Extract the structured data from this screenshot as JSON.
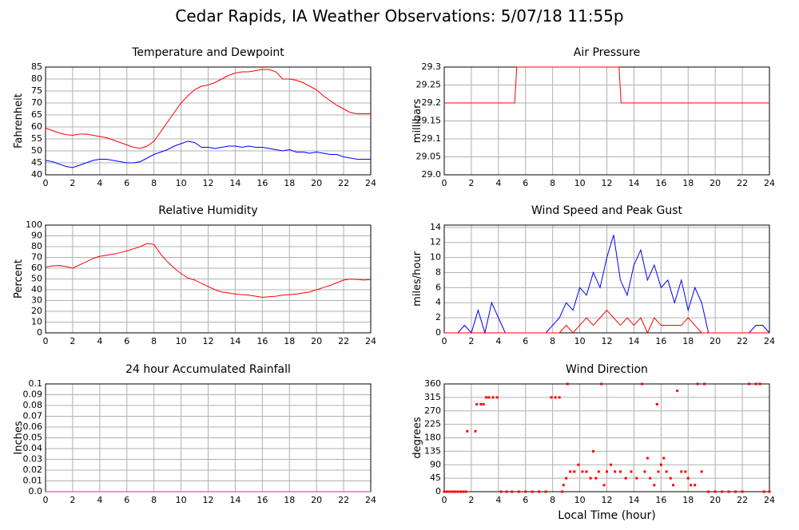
{
  "title": "Cedar Rapids, IA Weather Observations: 5/07/18 11:55p",
  "chart_data": [
    {
      "type": "line",
      "title": "Temperature and Dewpoint",
      "ylabel": "Fahrenheit",
      "x": [
        0,
        0.5,
        1,
        1.5,
        2,
        2.5,
        3,
        3.5,
        4,
        4.5,
        5,
        5.5,
        6,
        6.5,
        7,
        7.5,
        8,
        8.5,
        9,
        9.5,
        10,
        10.5,
        11,
        11.5,
        12,
        12.5,
        13,
        13.5,
        14,
        14.5,
        15,
        15.5,
        16,
        16.5,
        17,
        17.5,
        18,
        18.5,
        19,
        19.5,
        20,
        20.5,
        21,
        21.5,
        22,
        22.5,
        23,
        23.5,
        24
      ],
      "series": [
        {
          "color": "#ff0000",
          "values": [
            59.5,
            58.5,
            57.5,
            56.8,
            56.5,
            57,
            57,
            56.5,
            56,
            55.5,
            54.5,
            53.5,
            52.5,
            51.5,
            51,
            52,
            54,
            58,
            62,
            66,
            70,
            73,
            75.5,
            77,
            77.5,
            78.5,
            80,
            81.5,
            82.5,
            83,
            83,
            83.5,
            84,
            84,
            83,
            80,
            80,
            79.5,
            78.5,
            77,
            75.5,
            73,
            71,
            69,
            67.5,
            66,
            65.5,
            65.5,
            65.5
          ]
        },
        {
          "color": "#0000ff",
          "values": [
            46,
            45.5,
            44.5,
            43.5,
            43,
            44,
            45,
            46,
            46.5,
            46.5,
            46,
            45.5,
            45,
            45,
            45.5,
            47,
            48.5,
            49.5,
            50.5,
            52,
            53,
            54,
            53.5,
            51.5,
            51.5,
            51,
            51.5,
            52,
            52,
            51.5,
            52,
            51.5,
            51.5,
            51,
            50.5,
            50,
            50.5,
            49.5,
            49.5,
            49,
            49.5,
            49,
            48.5,
            48.5,
            47.5,
            47,
            46.5,
            46.5,
            46.5
          ]
        }
      ],
      "xlim": [
        0,
        24
      ],
      "xticks": [
        0,
        2,
        4,
        6,
        8,
        10,
        12,
        14,
        16,
        18,
        20,
        22,
        24
      ],
      "ylim": [
        40,
        85
      ],
      "yticks": [
        40,
        45,
        50,
        55,
        60,
        65,
        70,
        75,
        80,
        85
      ],
      "grid": true
    },
    {
      "type": "line",
      "title": "Air Pressure",
      "ylabel": "millibars",
      "x": [
        0,
        5.2,
        5.35,
        12.9,
        13.05,
        24
      ],
      "series": [
        {
          "color": "#ff0000",
          "values": [
            29.2,
            29.2,
            29.3,
            29.3,
            29.2,
            29.2
          ]
        }
      ],
      "xlim": [
        0,
        24
      ],
      "xticks": [
        0,
        2,
        4,
        6,
        8,
        10,
        12,
        14,
        16,
        18,
        20,
        22,
        24
      ],
      "ylim": [
        29,
        29.3
      ],
      "yticks": [
        {
          "value": 29,
          "label": "29.0"
        },
        29.05,
        29.1,
        29.15,
        29.2,
        29.25,
        29.3
      ],
      "grid": true
    },
    {
      "type": "line",
      "title": "Relative Humidity",
      "ylabel": "Percent",
      "x": [
        0,
        0.5,
        1,
        1.5,
        2,
        2.5,
        3,
        3.5,
        4,
        4.5,
        5,
        5.5,
        6,
        6.5,
        7,
        7.5,
        8,
        8.5,
        9,
        9.5,
        10,
        10.5,
        11,
        11.5,
        12,
        12.5,
        13,
        13.5,
        14,
        14.5,
        15,
        15.5,
        16,
        16.5,
        17,
        17.5,
        18,
        18.5,
        19,
        19.5,
        20,
        20.5,
        21,
        21.5,
        22,
        22.5,
        23,
        23.5,
        24
      ],
      "series": [
        {
          "color": "#ff0000",
          "values": [
            61,
            62,
            62.5,
            61.5,
            60,
            63,
            66,
            69,
            71,
            72,
            73,
            74.5,
            76,
            78,
            80,
            83,
            82,
            73,
            66,
            60,
            55,
            51,
            49,
            46,
            43,
            40,
            38,
            37,
            36,
            35.5,
            35,
            34,
            33,
            33.5,
            34,
            35,
            35.5,
            36,
            37,
            38,
            40,
            42,
            44,
            46.5,
            49,
            50,
            49.5,
            49,
            49.5
          ]
        }
      ],
      "xlim": [
        0,
        24
      ],
      "xticks": [
        0,
        2,
        4,
        6,
        8,
        10,
        12,
        14,
        16,
        18,
        20,
        22,
        24
      ],
      "ylim": [
        0,
        100
      ],
      "yticks": [
        0,
        10,
        20,
        30,
        40,
        50,
        60,
        70,
        80,
        90,
        100
      ],
      "grid": true
    },
    {
      "type": "line",
      "title": "Wind Speed and Peak Gust",
      "ylabel": "miles/hour",
      "x": [
        0,
        0.5,
        1,
        1.5,
        2,
        2.5,
        3,
        3.5,
        4,
        4.5,
        5,
        5.5,
        6,
        6.5,
        7,
        7.5,
        8,
        8.5,
        9,
        9.5,
        10,
        10.5,
        11,
        11.5,
        12,
        12.5,
        13,
        13.5,
        14,
        14.5,
        15,
        15.5,
        16,
        16.5,
        17,
        17.5,
        18,
        18.5,
        19,
        19.5,
        20,
        20.5,
        21,
        21.5,
        22,
        22.5,
        23,
        23.5,
        24
      ],
      "series": [
        {
          "color": "#0000ff",
          "values": [
            0,
            0,
            0,
            1,
            0,
            3,
            0,
            4,
            2,
            0,
            0,
            0,
            0,
            0,
            0,
            0,
            1,
            2,
            4,
            3,
            6,
            5,
            8,
            6,
            10,
            13,
            7,
            5,
            9,
            11,
            7,
            9,
            6,
            7,
            4,
            7,
            3,
            6,
            4,
            0,
            0,
            0,
            0,
            0,
            0,
            0,
            1,
            1,
            0
          ]
        },
        {
          "color": "#ff0000",
          "values": [
            0,
            0,
            0,
            0,
            0,
            0,
            0,
            0,
            0,
            0,
            0,
            0,
            0,
            0,
            0,
            0,
            0,
            0,
            1,
            0,
            1,
            2,
            1,
            2,
            3,
            2,
            1,
            2,
            1,
            2,
            0,
            2,
            1,
            1,
            1,
            1,
            2,
            1,
            0,
            0,
            0,
            0,
            0,
            0,
            0,
            0,
            0,
            0,
            0
          ]
        }
      ],
      "xlim": [
        0,
        24
      ],
      "xticks": [
        0,
        2,
        4,
        6,
        8,
        10,
        12,
        14,
        16,
        18,
        20,
        22,
        24
      ],
      "ylim": [
        0,
        14.3
      ],
      "yticks": [
        0,
        2,
        4,
        6,
        8,
        10,
        12,
        14
      ],
      "grid": true
    },
    {
      "type": "line",
      "title": "24 hour Accumulated Rainfall",
      "ylabel": "Inches",
      "x": [
        0,
        24
      ],
      "series": [
        {
          "color": "#cc3399",
          "values": [
            0,
            0
          ]
        }
      ],
      "xlim": [
        0,
        24
      ],
      "xticks": [
        0,
        2,
        4,
        6,
        8,
        10,
        12,
        14,
        16,
        18,
        20,
        22,
        24
      ],
      "ylim": [
        0,
        0.1
      ],
      "yticks": [
        {
          "value": 0,
          "label": "0.0"
        },
        0.01,
        0.02,
        0.03,
        0.04,
        0.05,
        0.06,
        0.07,
        0.08,
        0.09,
        0.1
      ],
      "grid": true
    },
    {
      "type": "scatter",
      "title": "Wind Direction",
      "ylabel": "degrees",
      "xlabel": "Local Time (hour)",
      "x": [
        0,
        0.2,
        0.4,
        0.6,
        0.8,
        1,
        1.2,
        1.4,
        1.6,
        1.7,
        2.3,
        2.4,
        2.7,
        2.9,
        3.1,
        3.3,
        3.6,
        3.9,
        4.2,
        4.6,
        5,
        5.5,
        6,
        6.5,
        7,
        7.5,
        7.9,
        8.2,
        8.5,
        8.7,
        8.8,
        9,
        9.1,
        9.3,
        9.6,
        9.9,
        10.2,
        10.5,
        10.8,
        11,
        11.2,
        11.4,
        11.6,
        11.8,
        12,
        12.3,
        12.6,
        13,
        13.4,
        13.8,
        14.2,
        14.6,
        14.8,
        15,
        15.2,
        15.5,
        15.7,
        15.8,
        16,
        16.2,
        16.4,
        16.7,
        16.9,
        17.2,
        17.5,
        17.8,
        18,
        18.2,
        18.5,
        18.7,
        19,
        19.2,
        19.5,
        20,
        20.5,
        21,
        21.5,
        22,
        22.5,
        23,
        23.3,
        23.6,
        24
      ],
      "values": [
        0,
        0,
        0,
        0,
        0,
        0,
        0,
        0,
        0,
        202,
        202,
        292,
        292,
        292,
        315,
        315,
        315,
        315,
        0,
        0,
        0,
        0,
        0,
        0,
        0,
        0,
        315,
        315,
        315,
        0,
        22,
        45,
        360,
        67,
        67,
        90,
        67,
        67,
        45,
        135,
        45,
        67,
        360,
        22,
        67,
        90,
        67,
        67,
        45,
        67,
        45,
        360,
        67,
        112,
        45,
        22,
        292,
        67,
        90,
        112,
        67,
        45,
        22,
        337,
        67,
        67,
        45,
        22,
        22,
        360,
        67,
        360,
        0,
        0,
        0,
        0,
        0,
        0,
        360,
        360,
        360,
        0,
        0
      ],
      "color": "#ff0000",
      "xlim": [
        0,
        24
      ],
      "xticks": [
        0,
        2,
        4,
        6,
        8,
        10,
        12,
        14,
        16,
        18,
        20,
        22,
        24
      ],
      "ylim": [
        0,
        360
      ],
      "yticks": [
        0,
        45,
        90,
        135,
        180,
        225,
        270,
        315,
        360
      ],
      "grid": true
    }
  ]
}
